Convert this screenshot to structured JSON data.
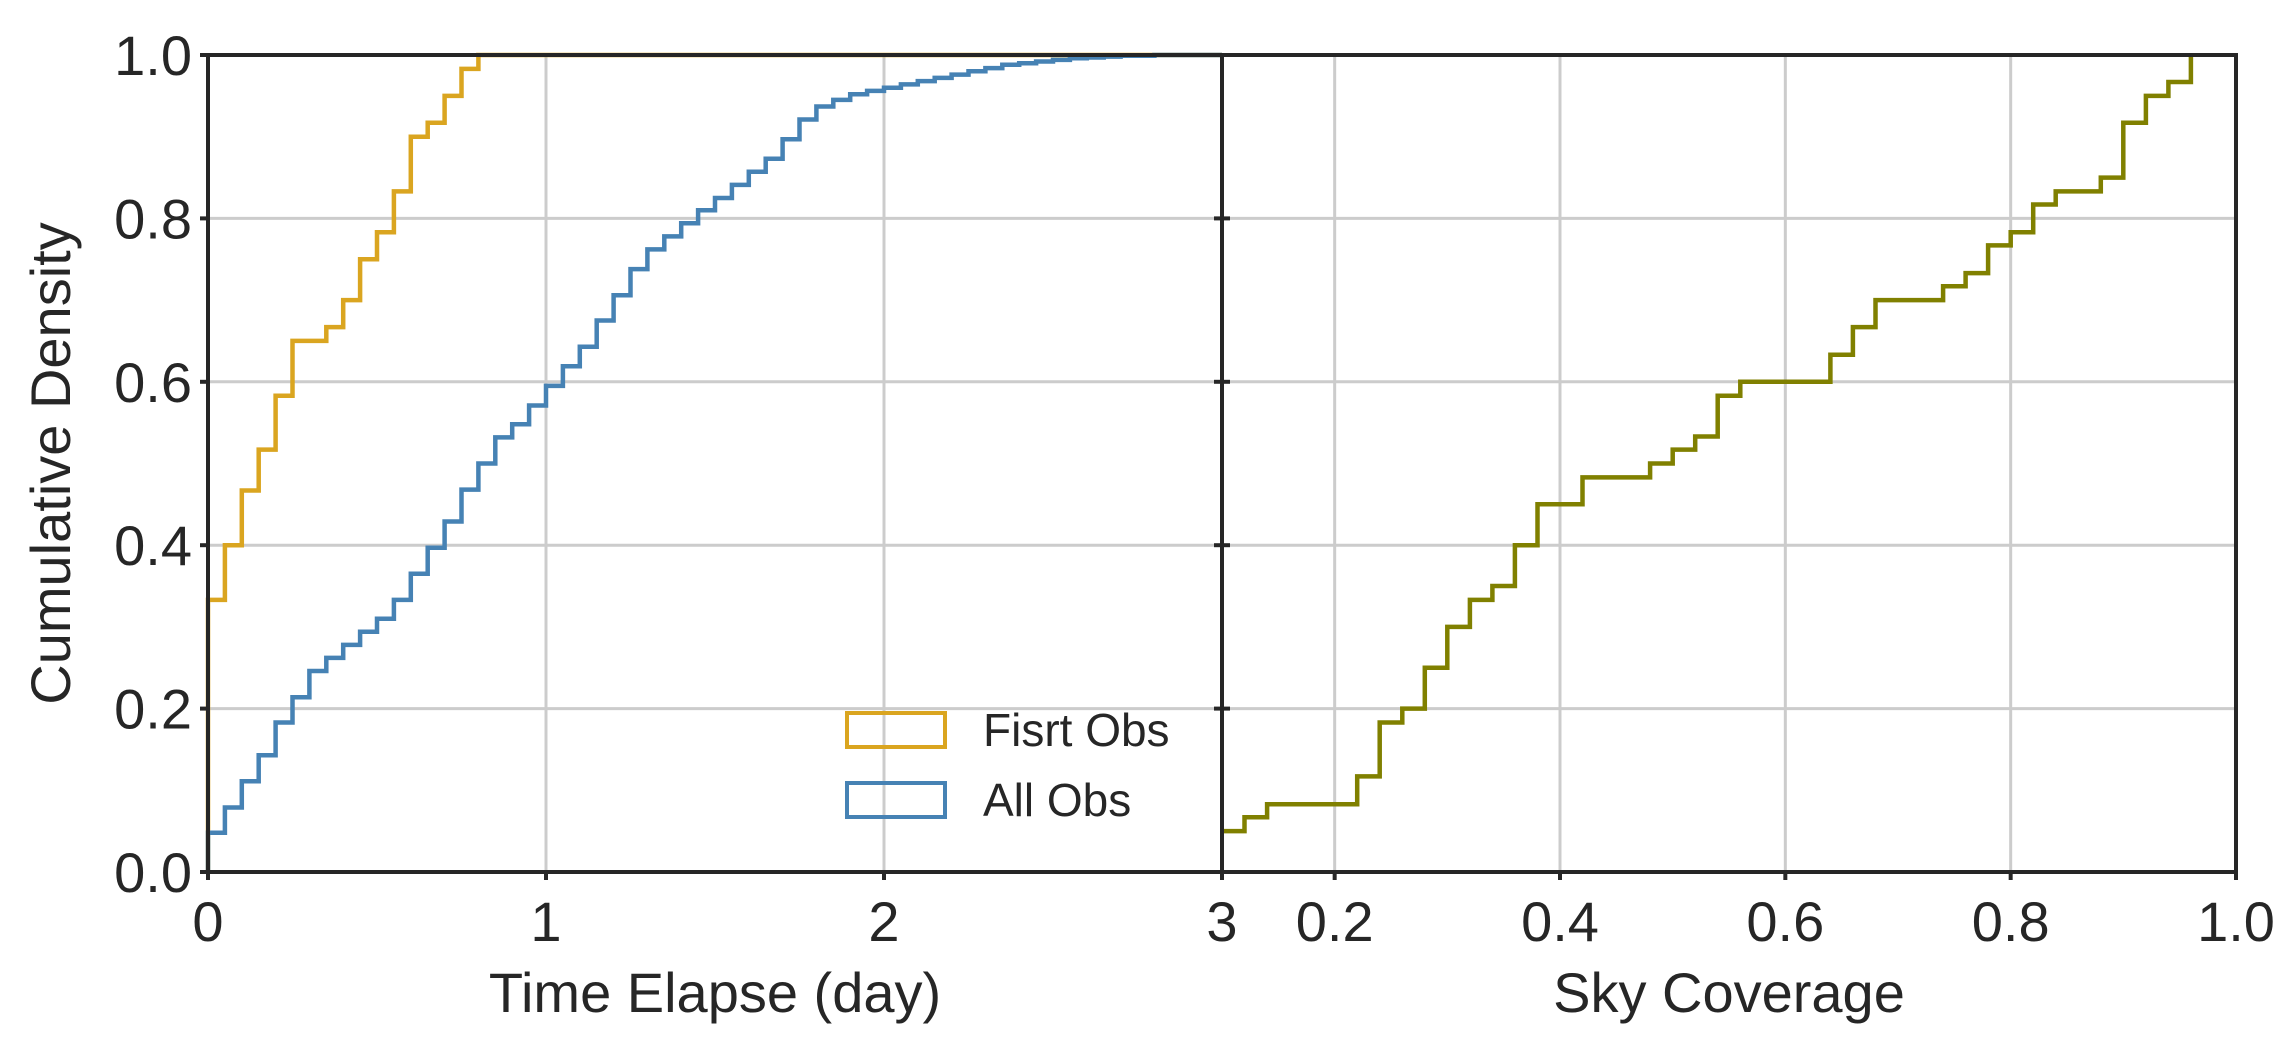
{
  "chart_data": [
    {
      "type": "line",
      "subtype": "cumulative step histogram",
      "title": "",
      "xlabel": "Time Elapse (day)",
      "ylabel": "Cumulative Density",
      "xlim": [
        0,
        3
      ],
      "ylim": [
        0,
        1
      ],
      "xticks": [
        "0",
        "1",
        "2",
        "3"
      ],
      "yticks": [
        "0.0",
        "0.2",
        "0.4",
        "0.6",
        "0.8",
        "1.0"
      ],
      "grid": true,
      "legend_position": "lower-right",
      "series": [
        {
          "name": "Fisrt Obs",
          "color": "#DAA520",
          "x": [
            0.0,
            0.0,
            0.05,
            0.1,
            0.15,
            0.2,
            0.25,
            0.35,
            0.4,
            0.45,
            0.5,
            0.55,
            0.6,
            0.65,
            0.7,
            0.75,
            0.8,
            3.0
          ],
          "y": [
            0.0,
            0.333,
            0.4,
            0.467,
            0.517,
            0.583,
            0.65,
            0.667,
            0.7,
            0.75,
            0.783,
            0.833,
            0.9,
            0.917,
            0.95,
            0.983,
            1.0,
            1.0
          ]
        },
        {
          "name": "All Obs",
          "color": "#4682B4",
          "x": [
            0.0,
            0.0,
            0.05,
            0.1,
            0.15,
            0.2,
            0.25,
            0.3,
            0.35,
            0.4,
            0.45,
            0.5,
            0.55,
            0.6,
            0.65,
            0.7,
            0.75,
            0.8,
            0.85,
            0.9,
            0.95,
            1.0,
            1.05,
            1.1,
            1.15,
            1.2,
            1.25,
            1.3,
            1.35,
            1.4,
            1.45,
            1.5,
            1.55,
            1.6,
            1.65,
            1.7,
            1.75,
            1.8,
            1.85,
            1.9,
            1.95,
            2.0,
            2.05,
            2.1,
            2.15,
            2.2,
            2.25,
            2.3,
            2.35,
            2.4,
            2.45,
            2.5,
            2.55,
            2.6,
            2.65,
            2.7,
            2.75,
            2.8,
            2.85,
            3.0
          ],
          "y": [
            0.0,
            0.048,
            0.079,
            0.111,
            0.143,
            0.183,
            0.214,
            0.246,
            0.262,
            0.278,
            0.294,
            0.31,
            0.333,
            0.365,
            0.397,
            0.429,
            0.468,
            0.5,
            0.532,
            0.548,
            0.571,
            0.595,
            0.619,
            0.643,
            0.675,
            0.706,
            0.738,
            0.762,
            0.778,
            0.794,
            0.81,
            0.825,
            0.841,
            0.857,
            0.873,
            0.897,
            0.921,
            0.937,
            0.945,
            0.952,
            0.956,
            0.96,
            0.964,
            0.968,
            0.972,
            0.976,
            0.98,
            0.984,
            0.988,
            0.99,
            0.992,
            0.994,
            0.996,
            0.997,
            0.998,
            0.999,
            0.999,
            1.0,
            1.0,
            1.0
          ]
        }
      ]
    },
    {
      "type": "line",
      "subtype": "cumulative step histogram",
      "title": "",
      "xlabel": "Sky Coverage",
      "ylabel": "",
      "xlim": [
        0.1,
        1.0
      ],
      "ylim": [
        0,
        1
      ],
      "xticks": [
        "0.2",
        "0.4",
        "0.6",
        "0.8",
        "1.0"
      ],
      "grid": true,
      "series": [
        {
          "name": "Sky Coverage",
          "color": "#808000",
          "x": [
            0.1,
            0.12,
            0.14,
            0.16,
            0.22,
            0.24,
            0.26,
            0.28,
            0.3,
            0.32,
            0.34,
            0.36,
            0.38,
            0.42,
            0.48,
            0.5,
            0.52,
            0.54,
            0.56,
            0.64,
            0.66,
            0.68,
            0.74,
            0.76,
            0.78,
            0.8,
            0.82,
            0.84,
            0.88,
            0.9,
            0.92,
            0.94,
            0.96
          ],
          "y": [
            0.05,
            0.067,
            0.083,
            0.083,
            0.117,
            0.183,
            0.2,
            0.25,
            0.3,
            0.333,
            0.35,
            0.4,
            0.45,
            0.483,
            0.5,
            0.517,
            0.533,
            0.583,
            0.6,
            0.633,
            0.667,
            0.7,
            0.717,
            0.733,
            0.767,
            0.783,
            0.817,
            0.833,
            0.85,
            0.917,
            0.95,
            0.967,
            1.0
          ]
        }
      ]
    }
  ]
}
